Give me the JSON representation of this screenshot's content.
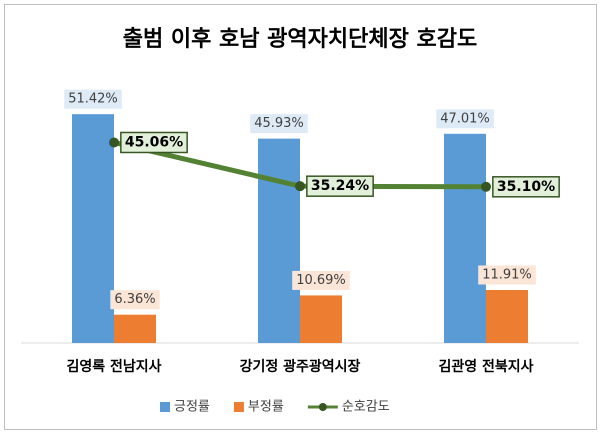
{
  "chart_data": {
    "type": "bar",
    "title": "출범 이후 호남 광역자치단체장 호감도",
    "categories": [
      "김영록 전남지사",
      "강기정 광주광역시장",
      "김관영 전북지사"
    ],
    "series": [
      {
        "name": "긍정률",
        "color": "#5b9bd5",
        "values": [
          51.42,
          45.93,
          47.01
        ],
        "value_labels": [
          "51.42%",
          "45.93%",
          "47.01%"
        ]
      },
      {
        "name": "부정률",
        "color": "#ed7d31",
        "values": [
          6.36,
          10.69,
          11.91
        ],
        "value_labels": [
          "6.36%",
          "10.69%",
          "11.91%"
        ]
      },
      {
        "name": "순호감도",
        "type": "line",
        "color": "#548235",
        "values": [
          45.06,
          35.24,
          35.1
        ],
        "value_labels": [
          "45.06%",
          "35.24%",
          "35.10%"
        ]
      }
    ],
    "ylim": [
      0,
      60
    ]
  }
}
